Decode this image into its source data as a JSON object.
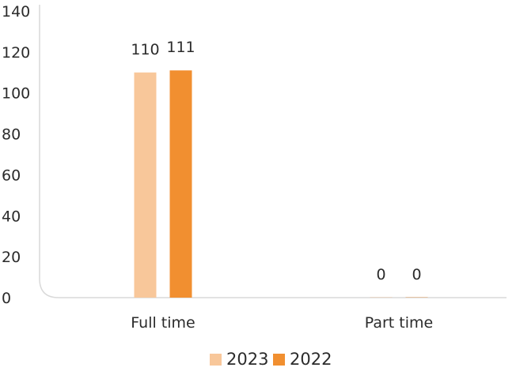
{
  "chart_data": {
    "type": "bar",
    "categories": [
      "Full time",
      "Part time"
    ],
    "series": [
      {
        "name": "2023",
        "values": [
          110,
          0
        ],
        "color": "#f8c79a"
      },
      {
        "name": "2022",
        "values": [
          111,
          0
        ],
        "color": "#f18f30"
      }
    ],
    "ylim": [
      0,
      140
    ],
    "yticks": [
      0,
      20,
      40,
      60,
      80,
      100,
      120,
      140
    ],
    "data_labels": [
      [
        "110",
        "0"
      ],
      [
        "111",
        "0"
      ]
    ],
    "grid": false,
    "legend_position": "bottom-center"
  }
}
